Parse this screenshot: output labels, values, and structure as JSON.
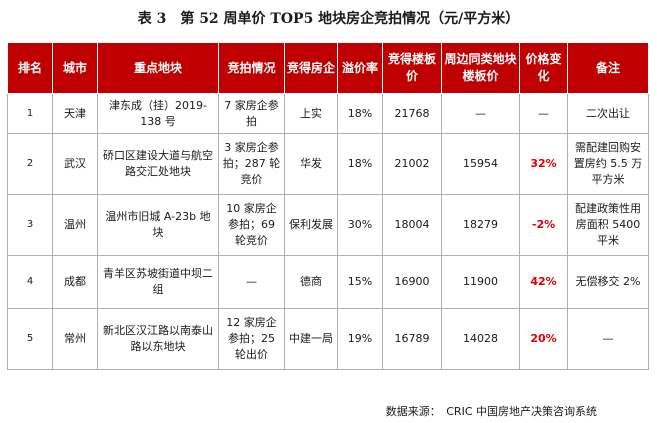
{
  "title": "表 3　第 52 周单价 TOP5 地块房企竞拍情况（元/平方米）",
  "headers": [
    "排名",
    "城市",
    "重点地块",
    "竞拍情况",
    "竞得房企",
    "溢价率",
    "竞得楼板价",
    "周边同类地块楼板价",
    "价格变化",
    "备注"
  ],
  "rows": [
    [
      "1",
      "天津",
      "津东成（挂）2019-138 号",
      "7 家房企参拍",
      "上实",
      "18%",
      "21768",
      "—",
      "—",
      "二次出让"
    ],
    [
      "2",
      "武汉",
      "硚口区建设大道与航空路交汇处地块",
      "3 家房企参拍；287 轮竞价",
      "华发",
      "18%",
      "21002",
      "15954",
      "32%",
      "需配建回购安置房约 5.5 万平方米"
    ],
    [
      "3",
      "温州",
      "温州市旧城 A-23b 地块",
      "10 家房企参拍；69 轮竞价",
      "保利发展",
      "30%",
      "18004",
      "18279",
      "-2%",
      "配建政策性用房面积 5400 平米"
    ],
    [
      "4",
      "成都",
      "青羊区苏坡街道中坝二组",
      "—",
      "德商",
      "15%",
      "16900",
      "11900",
      "42%",
      "无偿移交 2%"
    ],
    [
      "5",
      "常州",
      "新北区汉江路以南泰山路以东地块",
      "12 家房企参拍；25 轮出价",
      "中建一局",
      "19%",
      "16789",
      "14028",
      "20%",
      "—"
    ]
  ],
  "source": "数据来源：　CRIC 中国房地产决策咨询系统",
  "colors": {
    "header_bg": "#c00000",
    "highlight": "#e00000"
  }
}
